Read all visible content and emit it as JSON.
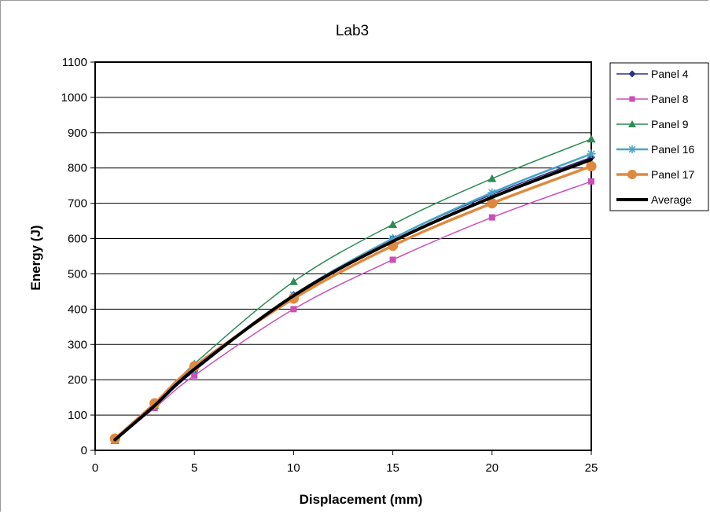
{
  "chart_data": {
    "type": "line",
    "title": "Lab3",
    "xlabel": "Displacement (mm)",
    "ylabel": "Energy (J)",
    "x": [
      1,
      3,
      5,
      10,
      15,
      20,
      25
    ],
    "xlim": [
      0,
      25
    ],
    "ylim": [
      0,
      1100
    ],
    "xticks": [
      0,
      5,
      10,
      15,
      20,
      25
    ],
    "yticks": [
      0,
      100,
      200,
      300,
      400,
      500,
      600,
      700,
      800,
      900,
      1000,
      1100
    ],
    "grid": "horizontal",
    "legend": "right",
    "series": [
      {
        "name": "Panel 4",
        "values": [
          28,
          125,
          225,
          440,
          600,
          725,
          830
        ],
        "color": "#2e2e8c",
        "marker": "diamond"
      },
      {
        "name": "Panel 8",
        "values": [
          30,
          120,
          212,
          400,
          540,
          660,
          762
        ],
        "color": "#cc4fb8",
        "marker": "square"
      },
      {
        "name": "Panel 9",
        "values": [
          28,
          128,
          245,
          478,
          640,
          770,
          882
        ],
        "color": "#2e8b57",
        "marker": "triangle"
      },
      {
        "name": "Panel 16",
        "values": [
          35,
          130,
          230,
          440,
          600,
          730,
          840
        ],
        "color": "#4aa3c8",
        "marker": "star"
      },
      {
        "name": "Panel 17",
        "values": [
          33,
          133,
          238,
          430,
          580,
          700,
          805
        ],
        "color": "#e0893e",
        "marker": "circle"
      },
      {
        "name": "Average",
        "values": [
          30,
          127,
          230,
          438,
          592,
          717,
          824
        ],
        "color": "#000000",
        "marker": "none"
      }
    ]
  }
}
